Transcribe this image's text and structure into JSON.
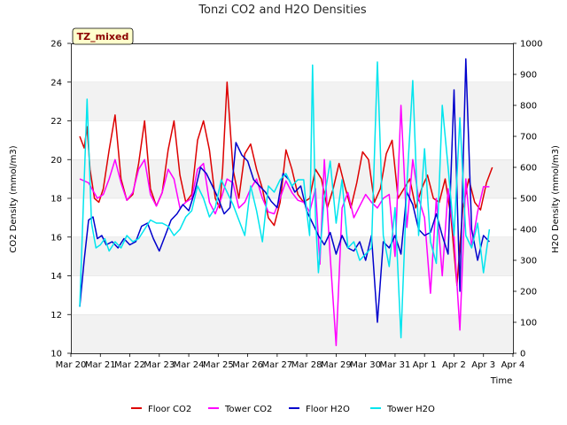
{
  "chart_data": {
    "type": "line",
    "title": "Tonzi CO2 and H2O Densities",
    "tag": "TZ_mixed",
    "xlabel": "Time",
    "ylabel_left": "CO2 Density (mmol/m3)",
    "ylabel_right": "H2O Density (mmol/m3)",
    "ylim_left": [
      10,
      26
    ],
    "ylim_right": [
      0,
      1000
    ],
    "xlim": [
      0,
      15
    ],
    "x_ticks": [
      {
        "x": 0,
        "label": "Mar 20"
      },
      {
        "x": 1,
        "label": "Mar 21"
      },
      {
        "x": 2,
        "label": "Mar 22"
      },
      {
        "x": 3,
        "label": "Mar 23"
      },
      {
        "x": 4,
        "label": "Mar 24"
      },
      {
        "x": 5,
        "label": "Mar 25"
      },
      {
        "x": 6,
        "label": "Mar 26"
      },
      {
        "x": 7,
        "label": "Mar 27"
      },
      {
        "x": 8,
        "label": "Mar 28"
      },
      {
        "x": 9,
        "label": "Mar 29"
      },
      {
        "x": 10,
        "label": "Mar 30"
      },
      {
        "x": 11,
        "label": "Mar 31"
      },
      {
        "x": 12,
        "label": "Apr 1"
      },
      {
        "x": 13,
        "label": "Apr 2"
      },
      {
        "x": 14,
        "label": "Apr 3"
      },
      {
        "x": 15,
        "label": "Apr 4"
      }
    ],
    "y_ticks_left": [
      10,
      12,
      14,
      16,
      18,
      20,
      22,
      24,
      26
    ],
    "y_ticks_right": [
      0,
      100,
      200,
      300,
      400,
      500,
      600,
      700,
      800,
      900,
      1000
    ],
    "legend": [
      "Floor CO2",
      "Tower CO2",
      "Floor H2O",
      "Tower H2O"
    ],
    "series": [
      {
        "name": "Floor CO2",
        "axis": "left",
        "color": "#dd0000",
        "x": [
          0.3,
          0.45,
          0.55,
          0.65,
          0.8,
          0.95,
          1.1,
          1.3,
          1.5,
          1.7,
          1.9,
          2.1,
          2.3,
          2.5,
          2.7,
          2.9,
          3.1,
          3.3,
          3.5,
          3.7,
          3.9,
          4.1,
          4.3,
          4.5,
          4.7,
          4.9,
          5.05,
          5.15,
          5.3,
          5.5,
          5.7,
          5.9,
          6.1,
          6.3,
          6.5,
          6.7,
          6.9,
          7.1,
          7.3,
          7.5,
          7.7,
          7.9,
          8.1,
          8.3,
          8.5,
          8.7,
          8.9,
          9.1,
          9.3,
          9.5,
          9.7,
          9.9,
          10.1,
          10.3,
          10.5,
          10.7,
          10.9,
          11.1,
          11.3,
          11.5,
          11.7,
          11.9,
          12.1,
          12.3,
          12.5,
          12.7,
          12.9,
          13.1,
          13.3,
          13.5,
          13.7,
          13.9,
          14.1,
          14.3
        ],
        "y": [
          21.2,
          20.6,
          21.7,
          19.5,
          18.0,
          17.8,
          18.5,
          20.5,
          22.3,
          19.0,
          17.9,
          18.2,
          19.8,
          22.0,
          18.5,
          17.6,
          18.3,
          20.5,
          22.0,
          19.2,
          17.8,
          18.2,
          21.0,
          22.0,
          20.5,
          18.0,
          17.5,
          19.5,
          24.0,
          19.5,
          18.0,
          20.3,
          20.8,
          19.5,
          18.5,
          17.0,
          16.6,
          17.8,
          20.5,
          19.5,
          18.2,
          17.8,
          18.0,
          19.5,
          19.0,
          17.5,
          18.5,
          19.8,
          18.6,
          17.5,
          18.8,
          20.4,
          20.0,
          17.8,
          18.5,
          20.3,
          21.0,
          18.0,
          18.5,
          19.0,
          17.5,
          18.5,
          19.2,
          18.0,
          17.8,
          19.0,
          17.0,
          13.5,
          17.5,
          19.0,
          17.8,
          17.4,
          18.8,
          19.6
        ]
      },
      {
        "name": "Tower CO2",
        "axis": "left",
        "color": "#ff00ff",
        "x": [
          0.3,
          0.6,
          0.9,
          1.1,
          1.3,
          1.5,
          1.7,
          1.9,
          2.1,
          2.3,
          2.5,
          2.7,
          2.9,
          3.1,
          3.3,
          3.5,
          3.7,
          3.9,
          4.1,
          4.3,
          4.5,
          4.7,
          4.9,
          5.1,
          5.3,
          5.5,
          5.7,
          5.9,
          6.1,
          6.3,
          6.5,
          6.7,
          6.9,
          7.1,
          7.3,
          7.5,
          7.7,
          7.9,
          8.1,
          8.3,
          8.45,
          8.6,
          8.8,
          9.0,
          9.2,
          9.4,
          9.6,
          9.8,
          10.0,
          10.2,
          10.4,
          10.6,
          10.8,
          11.0,
          11.2,
          11.4,
          11.6,
          11.8,
          12.0,
          12.2,
          12.4,
          12.6,
          12.8,
          13.0,
          13.2,
          13.4,
          13.6,
          13.8,
          14.0,
          14.2
        ],
        "y": [
          19.0,
          18.8,
          18.0,
          18.2,
          19.0,
          20.0,
          18.8,
          17.9,
          18.3,
          19.5,
          20.0,
          18.2,
          17.6,
          18.3,
          19.5,
          19.0,
          17.5,
          17.8,
          18.0,
          19.5,
          19.8,
          17.8,
          17.2,
          18.0,
          19.0,
          18.8,
          17.5,
          17.8,
          18.5,
          19.0,
          18.0,
          17.3,
          17.2,
          18.0,
          18.9,
          18.3,
          17.9,
          17.8,
          17.3,
          18.5,
          14.6,
          20.0,
          15.0,
          10.4,
          17.5,
          18.3,
          17.0,
          17.6,
          18.2,
          17.8,
          17.5,
          18.0,
          18.2,
          15.0,
          22.8,
          16.5,
          20.0,
          18.0,
          17.0,
          13.1,
          18.0,
          14.0,
          18.5,
          16.0,
          11.2,
          19.0,
          15.5,
          17.3,
          18.6,
          18.6
        ]
      },
      {
        "name": "Floor H2O",
        "axis": "right",
        "color": "#0000cc",
        "x": [
          0.3,
          0.45,
          0.6,
          0.75,
          0.9,
          1.05,
          1.2,
          1.4,
          1.6,
          1.8,
          2.0,
          2.2,
          2.4,
          2.6,
          2.8,
          3.0,
          3.2,
          3.4,
          3.6,
          3.8,
          4.0,
          4.2,
          4.4,
          4.6,
          4.8,
          5.0,
          5.2,
          5.4,
          5.6,
          5.8,
          6.0,
          6.2,
          6.4,
          6.6,
          6.8,
          7.0,
          7.2,
          7.4,
          7.6,
          7.8,
          8.0,
          8.2,
          8.4,
          8.6,
          8.8,
          9.0,
          9.2,
          9.4,
          9.6,
          9.8,
          10.0,
          10.2,
          10.4,
          10.6,
          10.8,
          11.0,
          11.2,
          11.4,
          11.6,
          11.8,
          12.0,
          12.2,
          12.4,
          12.6,
          12.8,
          13.0,
          13.2,
          13.4,
          13.6,
          13.8,
          14.0,
          14.2
        ],
        "y": [
          150,
          300,
          430,
          440,
          370,
          380,
          350,
          360,
          340,
          370,
          350,
          360,
          410,
          420,
          370,
          330,
          380,
          430,
          450,
          480,
          460,
          520,
          600,
          580,
          540,
          500,
          450,
          470,
          680,
          640,
          620,
          560,
          540,
          520,
          490,
          470,
          580,
          560,
          520,
          540,
          460,
          420,
          380,
          350,
          390,
          320,
          380,
          340,
          330,
          360,
          300,
          380,
          100,
          360,
          340,
          380,
          320,
          520,
          480,
          400,
          380,
          390,
          450,
          380,
          320,
          850,
          200,
          950,
          400,
          300,
          380,
          360
        ]
      },
      {
        "name": "Tower H2O",
        "axis": "right",
        "color": "#00e5ee",
        "x": [
          0.3,
          0.55,
          0.7,
          0.85,
          1.0,
          1.15,
          1.3,
          1.5,
          1.7,
          1.9,
          2.1,
          2.3,
          2.5,
          2.7,
          2.9,
          3.1,
          3.3,
          3.5,
          3.7,
          3.9,
          4.1,
          4.3,
          4.5,
          4.7,
          4.9,
          5.1,
          5.3,
          5.5,
          5.7,
          5.9,
          6.1,
          6.3,
          6.5,
          6.7,
          6.9,
          7.1,
          7.3,
          7.5,
          7.7,
          7.9,
          8.0,
          8.1,
          8.2,
          8.3,
          8.4,
          8.6,
          8.8,
          9.0,
          9.2,
          9.4,
          9.6,
          9.8,
          10.0,
          10.2,
          10.4,
          10.6,
          10.8,
          11.0,
          11.2,
          11.4,
          11.6,
          11.8,
          12.0,
          12.2,
          12.4,
          12.6,
          12.8,
          13.0,
          13.2,
          13.4,
          13.6,
          13.8,
          14.0,
          14.2
        ],
        "y": [
          150,
          820,
          420,
          340,
          350,
          370,
          330,
          360,
          340,
          380,
          360,
          370,
          400,
          430,
          420,
          420,
          410,
          380,
          400,
          440,
          460,
          540,
          500,
          440,
          470,
          560,
          520,
          480,
          430,
          380,
          540,
          460,
          360,
          540,
          520,
          560,
          580,
          540,
          560,
          560,
          460,
          380,
          930,
          440,
          260,
          500,
          620,
          420,
          560,
          340,
          360,
          300,
          320,
          340,
          940,
          380,
          280,
          470,
          50,
          540,
          880,
          380,
          660,
          360,
          290,
          800,
          600,
          380,
          760,
          380,
          340,
          420,
          260,
          400
        ]
      }
    ]
  }
}
